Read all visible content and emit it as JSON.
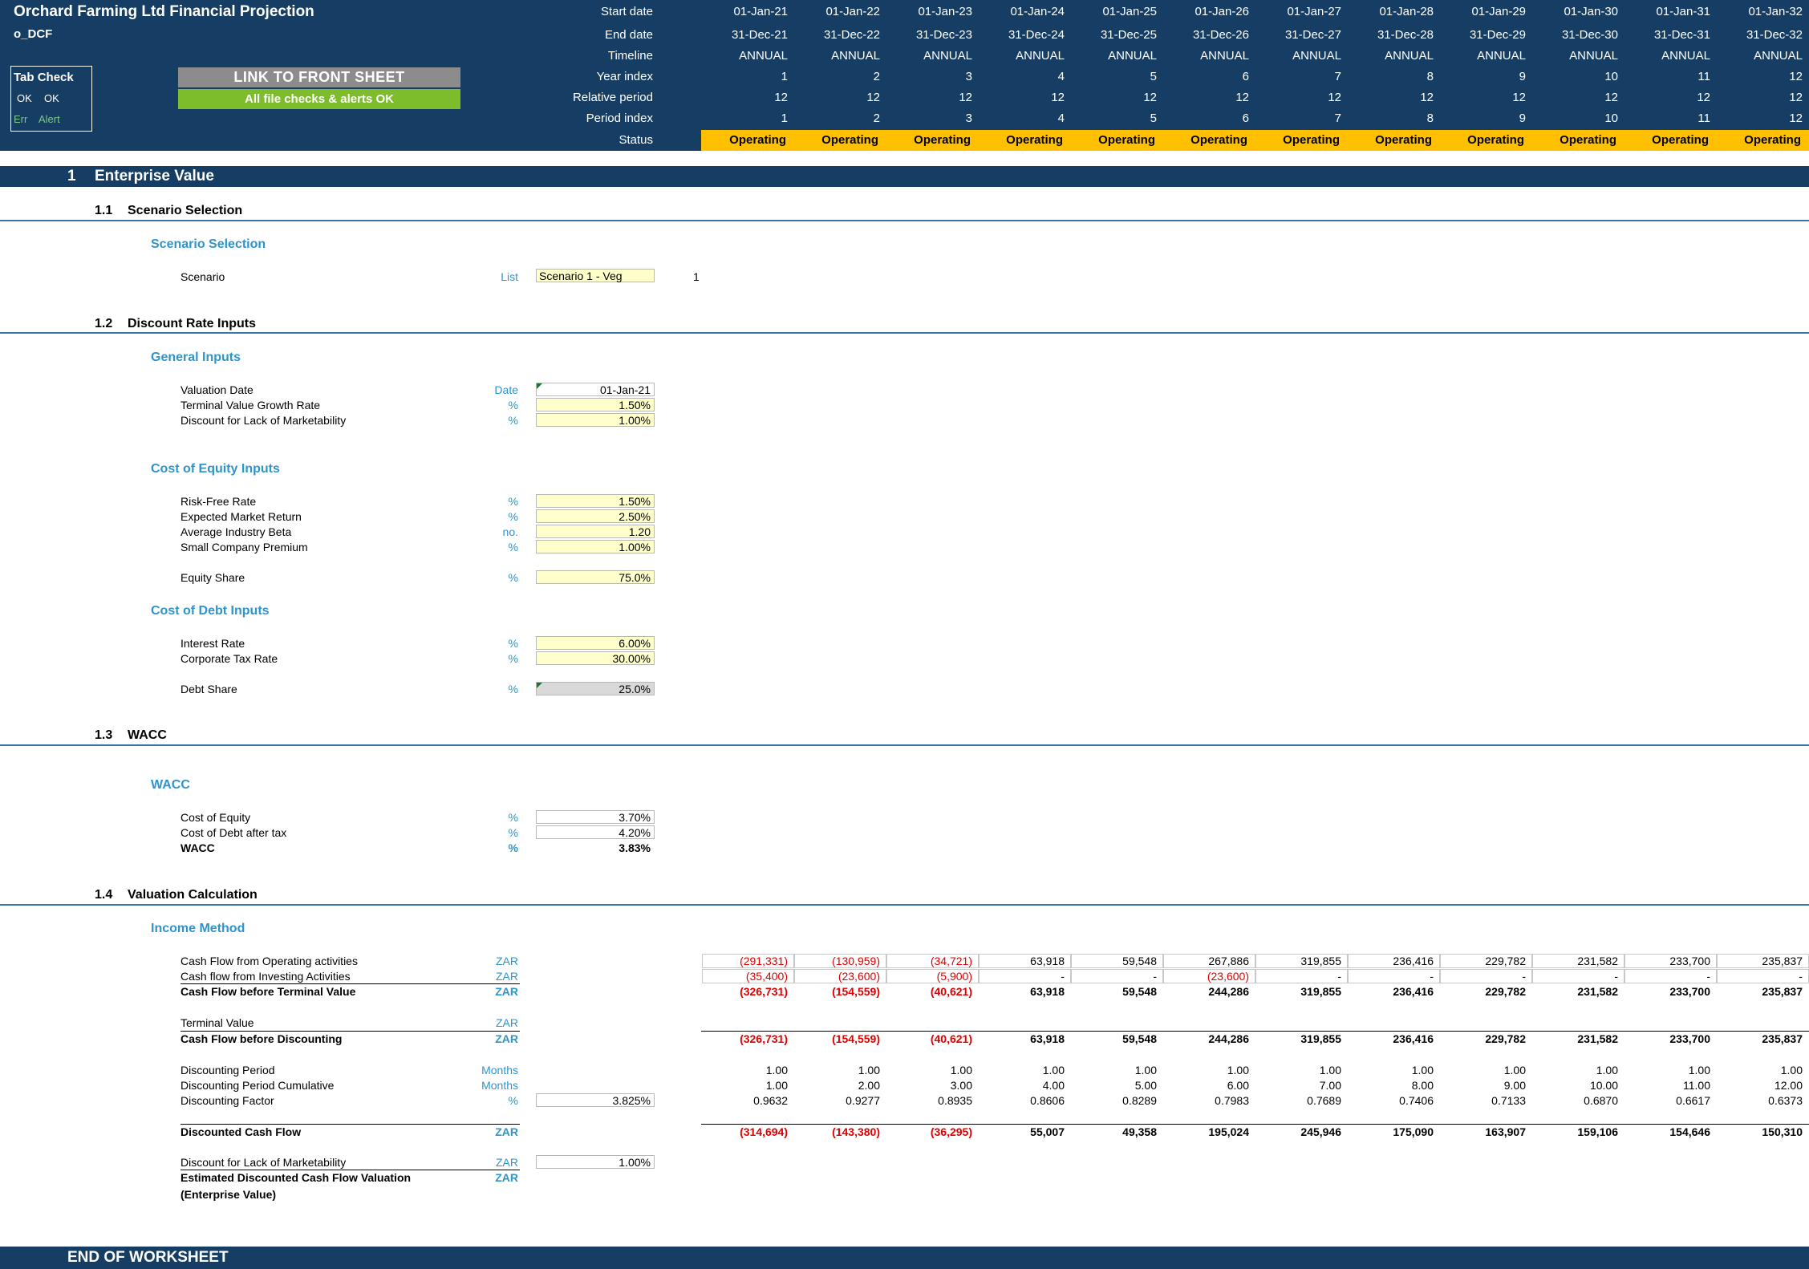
{
  "header": {
    "title": "Orchard Farming Ltd Financial Projection",
    "sheet_name": "o_DCF",
    "tab_check": {
      "title": "Tab Check",
      "ok1": "OK",
      "ok2": "OK",
      "err": "Err",
      "alert": "Alert"
    },
    "link_button": "LINK TO FRONT SHEET",
    "checks_button": "All file checks & alerts OK",
    "row_labels": [
      "Start date",
      "End date",
      "Timeline",
      "Year index",
      "Relative period",
      "Period index",
      "Status"
    ],
    "columns": [
      {
        "start": "01-Jan-21",
        "end": "31-Dec-21",
        "timeline": "ANNUAL",
        "year": "1",
        "rel": "12",
        "period": "1",
        "status": "Operating"
      },
      {
        "start": "01-Jan-22",
        "end": "31-Dec-22",
        "timeline": "ANNUAL",
        "year": "2",
        "rel": "12",
        "period": "2",
        "status": "Operating"
      },
      {
        "start": "01-Jan-23",
        "end": "31-Dec-23",
        "timeline": "ANNUAL",
        "year": "3",
        "rel": "12",
        "period": "3",
        "status": "Operating"
      },
      {
        "start": "01-Jan-24",
        "end": "31-Dec-24",
        "timeline": "ANNUAL",
        "year": "4",
        "rel": "12",
        "period": "4",
        "status": "Operating"
      },
      {
        "start": "01-Jan-25",
        "end": "31-Dec-25",
        "timeline": "ANNUAL",
        "year": "5",
        "rel": "12",
        "period": "5",
        "status": "Operating"
      },
      {
        "start": "01-Jan-26",
        "end": "31-Dec-26",
        "timeline": "ANNUAL",
        "year": "6",
        "rel": "12",
        "period": "6",
        "status": "Operating"
      },
      {
        "start": "01-Jan-27",
        "end": "31-Dec-27",
        "timeline": "ANNUAL",
        "year": "7",
        "rel": "12",
        "period": "7",
        "status": "Operating"
      },
      {
        "start": "01-Jan-28",
        "end": "31-Dec-28",
        "timeline": "ANNUAL",
        "year": "8",
        "rel": "12",
        "period": "8",
        "status": "Operating"
      },
      {
        "start": "01-Jan-29",
        "end": "31-Dec-29",
        "timeline": "ANNUAL",
        "year": "9",
        "rel": "12",
        "period": "9",
        "status": "Operating"
      },
      {
        "start": "01-Jan-30",
        "end": "31-Dec-30",
        "timeline": "ANNUAL",
        "year": "10",
        "rel": "12",
        "period": "10",
        "status": "Operating"
      },
      {
        "start": "01-Jan-31",
        "end": "31-Dec-31",
        "timeline": "ANNUAL",
        "year": "11",
        "rel": "12",
        "period": "11",
        "status": "Operating"
      },
      {
        "start": "01-Jan-32",
        "end": "31-Dec-32",
        "timeline": "ANNUAL",
        "year": "12",
        "rel": "12",
        "period": "12",
        "status": "Operating"
      }
    ]
  },
  "section1": {
    "num": "1",
    "title": "Enterprise Value"
  },
  "s11": {
    "num": "1.1",
    "title": "Scenario Selection",
    "group": "Scenario Selection",
    "scenario_label": "Scenario",
    "scenario_unit": "List",
    "scenario_value": "Scenario 1 - Veg",
    "scenario_index": "1"
  },
  "s12": {
    "num": "1.2",
    "title": "Discount Rate Inputs",
    "general": {
      "title": "General Inputs",
      "rows": [
        {
          "label": "Valuation Date",
          "unit": "Date",
          "value": "01-Jan-21"
        },
        {
          "label": "Terminal Value Growth Rate",
          "unit": "%",
          "value": "1.50%"
        },
        {
          "label": "Discount for Lack of Marketability",
          "unit": "%",
          "value": "1.00%"
        }
      ]
    },
    "equity": {
      "title": "Cost of Equity Inputs",
      "rows": [
        {
          "label": "Risk-Free Rate",
          "unit": "%",
          "value": "1.50%"
        },
        {
          "label": "Expected Market Return",
          "unit": "%",
          "value": "2.50%"
        },
        {
          "label": "Average Industry Beta",
          "unit": "no.",
          "value": "1.20"
        },
        {
          "label": "Small Company Premium",
          "unit": "%",
          "value": "1.00%"
        },
        {
          "label": "Equity Share",
          "unit": "%",
          "value": "75.0%"
        }
      ]
    },
    "debt": {
      "title": "Cost of Debt Inputs",
      "rows": [
        {
          "label": "Interest Rate",
          "unit": "%",
          "value": "6.00%"
        },
        {
          "label": "Corporate Tax Rate",
          "unit": "%",
          "value": "30.00%"
        },
        {
          "label": "Debt Share",
          "unit": "%",
          "value": "25.0%"
        }
      ]
    }
  },
  "s13": {
    "num": "1.3",
    "title": "WACC",
    "group": "WACC",
    "rows": [
      {
        "label": "Cost of Equity",
        "unit": "%",
        "value": "3.70%"
      },
      {
        "label": "Cost of Debt after tax",
        "unit": "%",
        "value": "4.20%"
      },
      {
        "label": "WACC",
        "unit": "%",
        "value": "3.83%"
      }
    ]
  },
  "s14": {
    "num": "1.4",
    "title": "Valuation Calculation",
    "group": "Income Method",
    "rows": {
      "cfo": {
        "label": "Cash Flow from Operating activities",
        "unit": "ZAR",
        "values": [
          "(291,331)",
          "(130,959)",
          "(34,721)",
          "63,918",
          "59,548",
          "267,886",
          "319,855",
          "236,416",
          "229,782",
          "231,582",
          "233,700",
          "235,837"
        ]
      },
      "cfi": {
        "label": "Cash flow from Investing Activities",
        "unit": "ZAR",
        "values": [
          "(35,400)",
          "(23,600)",
          "(5,900)",
          "-",
          "-",
          "(23,600)",
          "-",
          "-",
          "-",
          "-",
          "-",
          "-"
        ]
      },
      "cfbtv": {
        "label": "Cash Flow before Terminal Value",
        "unit": "ZAR",
        "values": [
          "(326,731)",
          "(154,559)",
          "(40,621)",
          "63,918",
          "59,548",
          "244,286",
          "319,855",
          "236,416",
          "229,782",
          "231,582",
          "233,700",
          "235,837"
        ]
      },
      "tv": {
        "label": "Terminal Value",
        "unit": "ZAR"
      },
      "cfbd": {
        "label": "Cash Flow before Discounting",
        "unit": "ZAR",
        "values": [
          "(326,731)",
          "(154,559)",
          "(40,621)",
          "63,918",
          "59,548",
          "244,286",
          "319,855",
          "236,416",
          "229,782",
          "231,582",
          "233,700",
          "235,837"
        ]
      },
      "dp": {
        "label": "Discounting Period",
        "unit": "Months",
        "values": [
          "1.00",
          "1.00",
          "1.00",
          "1.00",
          "1.00",
          "1.00",
          "1.00",
          "1.00",
          "1.00",
          "1.00",
          "1.00",
          "1.00"
        ]
      },
      "dpc": {
        "label": "Discounting Period Cumulative",
        "unit": "Months",
        "values": [
          "1.00",
          "2.00",
          "3.00",
          "4.00",
          "5.00",
          "6.00",
          "7.00",
          "8.00",
          "9.00",
          "10.00",
          "11.00",
          "12.00"
        ]
      },
      "df": {
        "label": "Discounting Factor",
        "unit": "%",
        "input": "3.825%",
        "values": [
          "0.9632",
          "0.9277",
          "0.8935",
          "0.8606",
          "0.8289",
          "0.7983",
          "0.7689",
          "0.7406",
          "0.7133",
          "0.6870",
          "0.6617",
          "0.6373"
        ]
      },
      "dcf": {
        "label": "Discounted Cash Flow",
        "unit": "ZAR",
        "values": [
          "(314,694)",
          "(143,380)",
          "(36,295)",
          "55,007",
          "49,358",
          "195,024",
          "245,946",
          "175,090",
          "163,907",
          "159,106",
          "154,646",
          "150,310"
        ]
      },
      "dlom": {
        "label": "Discount for Lack of Marketability",
        "unit": "ZAR",
        "input": "1.00%"
      },
      "edcf": {
        "label": "Estimated Discounted Cash Flow Valuation",
        "label2": "(Enterprise Value)",
        "unit": "ZAR"
      }
    }
  },
  "footer": {
    "title": "END OF WORKSHEET"
  },
  "colors": {
    "navy": "#163e64",
    "status_yellow": "#ffc000",
    "input_yellow": "#ffffcc",
    "accent_blue": "#2f94c9",
    "negative_red": "#e00000",
    "ok_green": "#7dbd2c"
  }
}
